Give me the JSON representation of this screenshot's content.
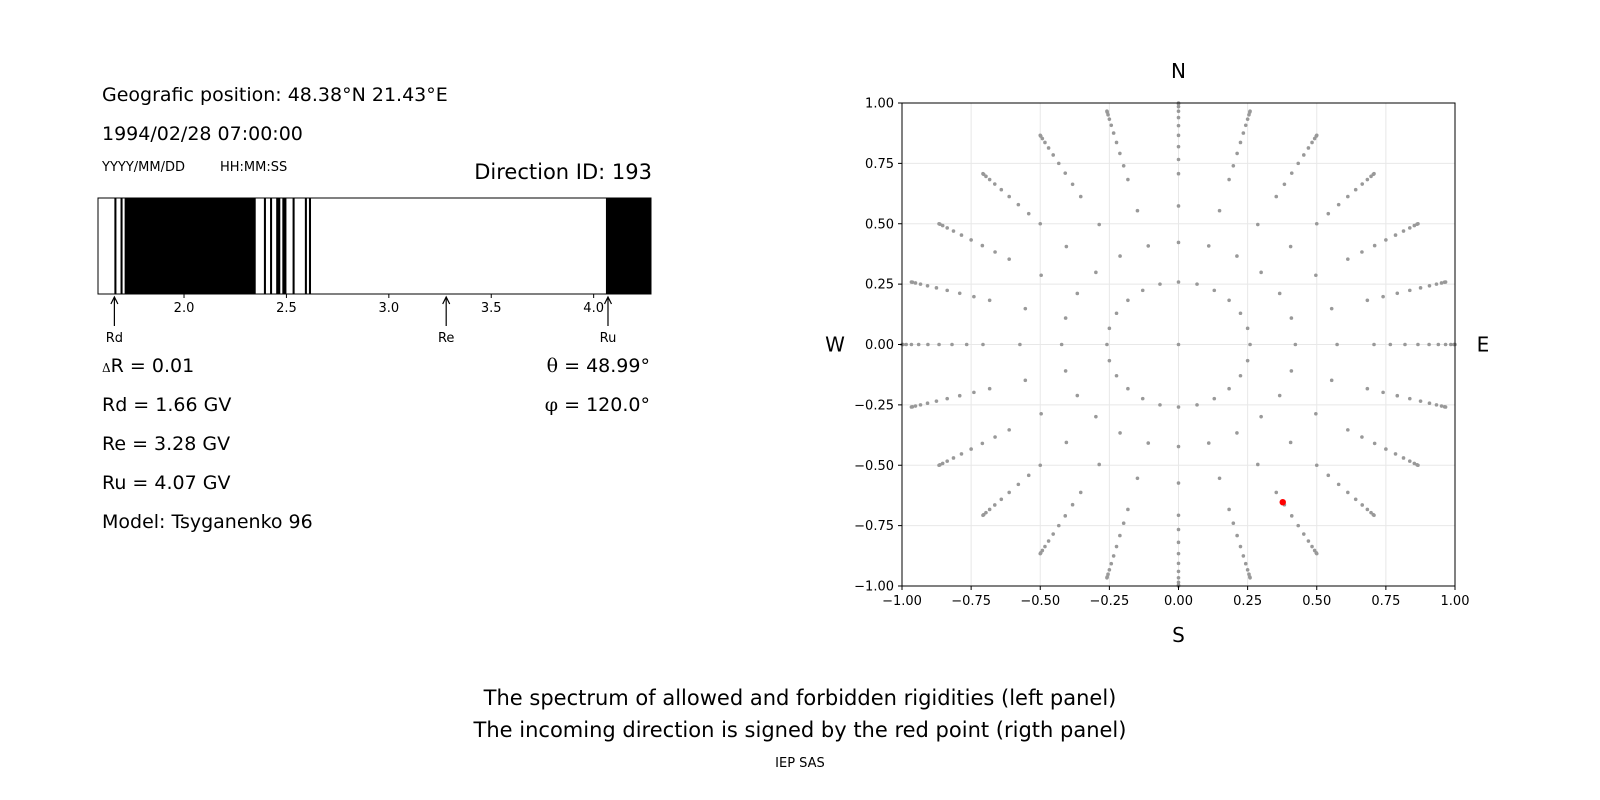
{
  "left_panel": {
    "position_text": "Geografic position: 48.38°N 21.43°E",
    "datetime": "1994/02/28 07:00:00",
    "date_format": "YYYY/MM/DD",
    "time_format": "HH:MM:SS",
    "direction_id": "Direction ID: 193",
    "delta_r_symbol": "Δ",
    "delta_r": "R = 0.01",
    "rd_value": "Rd = 1.66 GV",
    "re_value": "Re = 3.28 GV",
    "ru_value": "Ru = 4.07 GV",
    "model": "Model: Tsyganenko 96",
    "theta_symbol": "θ",
    "theta": " = 48.99°",
    "phi_symbol": "φ",
    "phi": " = 120.0°"
  },
  "right_panel": {
    "north": "N",
    "south": "S",
    "west": "W",
    "east": "E"
  },
  "caption": {
    "line1": "The spectrum of allowed and forbidden rigidities (left panel)",
    "line2": "The incoming direction is signed by the red point (rigth panel)",
    "footer": "IEP SAS"
  },
  "chart_data": [
    {
      "type": "bar",
      "description_type": "rigidity spectrum",
      "xlim": [
        1.58,
        4.28
      ],
      "x_ticks": [
        2.0,
        2.5,
        3.0,
        3.5,
        4.0
      ],
      "x_tick_labels": [
        "2.0",
        "2.5",
        "3.0",
        "3.5",
        "4.0"
      ],
      "forbidden_bands": [
        [
          1.66,
          1.67
        ],
        [
          1.69,
          1.7
        ],
        [
          1.71,
          2.35
        ],
        [
          2.39,
          2.4
        ],
        [
          2.42,
          2.43
        ],
        [
          2.45,
          2.47
        ],
        [
          2.48,
          2.5
        ],
        [
          2.53,
          2.54
        ],
        [
          2.59,
          2.6
        ],
        [
          2.61,
          2.62
        ],
        [
          4.06,
          4.07
        ],
        [
          4.07,
          4.28
        ]
      ],
      "markers": [
        {
          "label": "Rd",
          "x": 1.66
        },
        {
          "label": "Re",
          "x": 3.28
        },
        {
          "label": "Ru",
          "x": 4.07
        }
      ],
      "colors": {
        "forbidden": "#000000",
        "allowed": "#ffffff"
      }
    },
    {
      "type": "scatter",
      "xlim": [
        -1.0,
        1.0
      ],
      "ylim": [
        -1.0,
        1.0
      ],
      "x_ticks": [
        -1.0,
        -0.75,
        -0.5,
        -0.25,
        0.0,
        0.25,
        0.5,
        0.75,
        1.0
      ],
      "x_tick_labels": [
        "−1.00",
        "−0.75",
        "−0.50",
        "−0.25",
        "0.00",
        "0.25",
        "0.50",
        "0.75",
        "1.00"
      ],
      "y_ticks": [
        1.0,
        0.75,
        0.5,
        0.25,
        0.0,
        -0.25,
        -0.5,
        -0.75,
        -1.0
      ],
      "y_tick_labels": [
        "1.00",
        "0.75",
        "0.50",
        "0.25",
        "0.00",
        "−0.25",
        "−0.50",
        "−0.75",
        "−1.00"
      ],
      "grid": true,
      "direction_grid": {
        "azimuth_step_deg": 15,
        "zenith_deg": [
          0,
          15,
          25,
          35,
          45,
          50,
          55,
          60,
          65,
          70,
          75,
          80,
          85,
          90
        ]
      },
      "highlight_point": {
        "x": 0.377,
        "y": -0.653
      },
      "colors": {
        "grid_points": "#999999",
        "highlight": "#ff0000"
      }
    }
  ]
}
